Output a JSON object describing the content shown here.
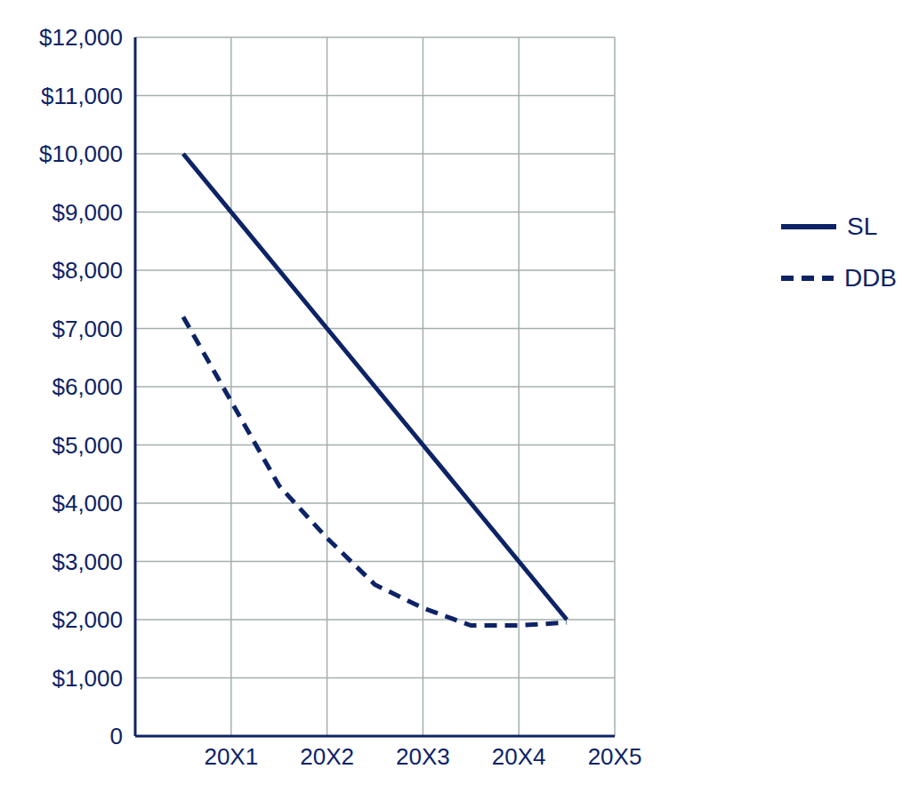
{
  "chart_data": {
    "type": "line",
    "x": [
      0.5,
      1,
      1.5,
      2,
      2.5,
      3,
      3.5,
      4,
      4.5
    ],
    "series": [
      {
        "name": "SL",
        "color": "#0d2366",
        "line_style": "solid",
        "values": [
          10000,
          9000,
          8000,
          7000,
          6000,
          5000,
          4000,
          3000,
          2000
        ]
      },
      {
        "name": "DDB",
        "color": "#0d2366",
        "line_style": "dashed",
        "values": [
          7200,
          5750,
          4300,
          3400,
          2600,
          2200,
          1900,
          1900,
          1950
        ]
      }
    ],
    "xlim": [
      0,
      5
    ],
    "xticks": [
      {
        "value": 1,
        "label": "20X1"
      },
      {
        "value": 2,
        "label": "20X2"
      },
      {
        "value": 3,
        "label": "20X3"
      },
      {
        "value": 4,
        "label": "20X4"
      },
      {
        "value": 5,
        "label": "20X5"
      }
    ],
    "ylim": [
      0,
      12000
    ],
    "yticks": [
      0,
      {
        "value": 1000,
        "label": "$1,000"
      },
      {
        "value": 2000,
        "label": "$2,000"
      },
      {
        "value": 3000,
        "label": "$3,000"
      },
      {
        "value": 4000,
        "label": "$4,000"
      },
      {
        "value": 5000,
        "label": "$5,000"
      },
      {
        "value": 6000,
        "label": "$6,000"
      },
      {
        "value": 7000,
        "label": "$7,000"
      },
      {
        "value": 8000,
        "label": "$8,000"
      },
      {
        "value": 9000,
        "label": "$9,000"
      },
      {
        "value": 10000,
        "label": "$10,000"
      },
      {
        "value": 11000,
        "label": "$11,000"
      },
      {
        "value": 12000,
        "label": "$12,000"
      }
    ],
    "grid": true,
    "legend": "right"
  }
}
